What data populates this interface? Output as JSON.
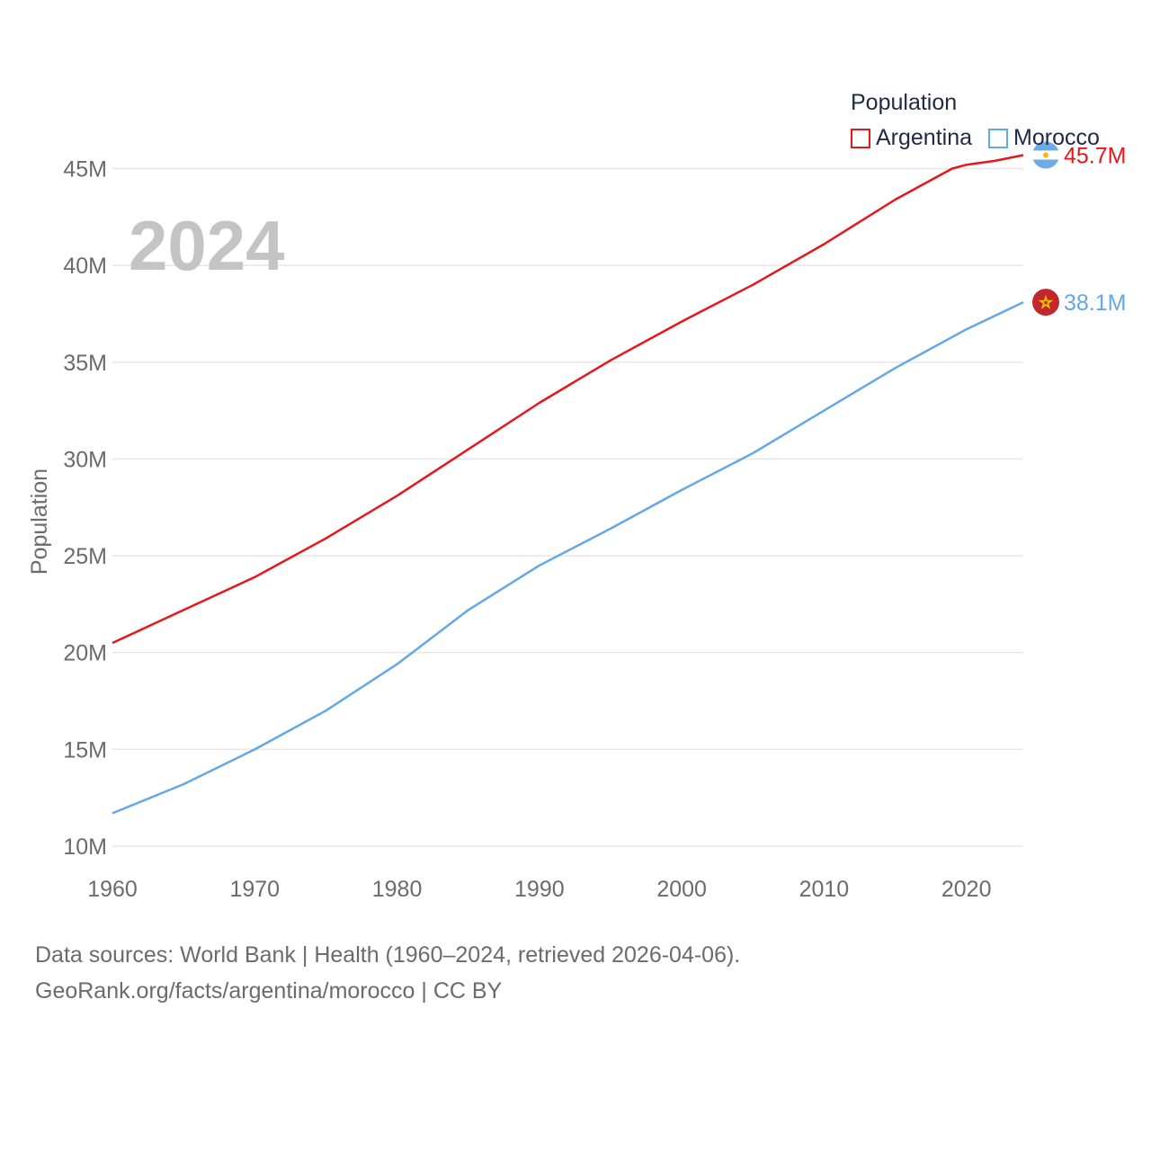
{
  "chart_data": {
    "type": "line",
    "year_label": "2024",
    "ylabel": "Population",
    "xlabel": "",
    "xlim": [
      1960,
      2024
    ],
    "ylim": [
      10000000,
      46000000
    ],
    "x_ticks": [
      1960,
      1970,
      1980,
      1990,
      2000,
      2010,
      2020
    ],
    "y_ticks": [
      {
        "value": 10000000,
        "label": "10M"
      },
      {
        "value": 15000000,
        "label": "15M"
      },
      {
        "value": 20000000,
        "label": "20M"
      },
      {
        "value": 25000000,
        "label": "25M"
      },
      {
        "value": 30000000,
        "label": "30M"
      },
      {
        "value": 35000000,
        "label": "35M"
      },
      {
        "value": 40000000,
        "label": "40M"
      },
      {
        "value": 45000000,
        "label": "45M"
      }
    ],
    "legend_title": "Population",
    "series": [
      {
        "name": "Argentina",
        "color": "#e8161b",
        "end_label": "45.7M",
        "flag": "argentina-flag",
        "points": [
          [
            1960,
            20.5
          ],
          [
            1965,
            22.2
          ],
          [
            1970,
            23.9
          ],
          [
            1975,
            25.9
          ],
          [
            1980,
            28.1
          ],
          [
            1985,
            30.5
          ],
          [
            1990,
            32.9
          ],
          [
            1995,
            35.1
          ],
          [
            2000,
            37.1
          ],
          [
            2005,
            39.0
          ],
          [
            2010,
            41.1
          ],
          [
            2015,
            43.4
          ],
          [
            2018,
            44.6
          ],
          [
            2019,
            45.0
          ],
          [
            2020,
            45.2
          ],
          [
            2022,
            45.4
          ],
          [
            2024,
            45.7
          ]
        ]
      },
      {
        "name": "Morocco",
        "color": "#63a8e6",
        "end_label": "38.1M",
        "flag": "morocco-flag",
        "points": [
          [
            1960,
            11.7
          ],
          [
            1965,
            13.2
          ],
          [
            1970,
            15.0
          ],
          [
            1975,
            17.0
          ],
          [
            1980,
            19.4
          ],
          [
            1985,
            22.2
          ],
          [
            1990,
            24.5
          ],
          [
            1995,
            26.4
          ],
          [
            2000,
            28.4
          ],
          [
            2005,
            30.3
          ],
          [
            2010,
            32.5
          ],
          [
            2015,
            34.7
          ],
          [
            2020,
            36.7
          ],
          [
            2024,
            38.1
          ]
        ]
      }
    ]
  },
  "source": {
    "line1": "Data sources: World Bank | Health (1960–2024, retrieved 2026-04-06).",
    "line2": "GeoRank.org/facts/argentina/morocco | CC BY"
  }
}
